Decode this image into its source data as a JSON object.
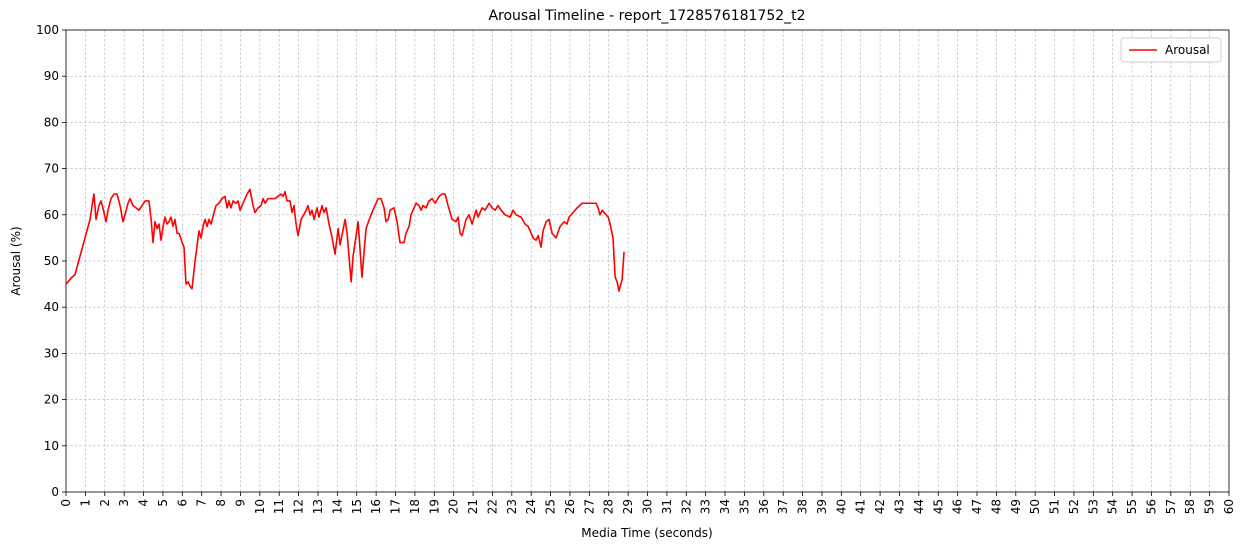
{
  "chart_data": {
    "type": "line",
    "title": "Arousal Timeline - report_1728576181752_t2",
    "xlabel": "Media Time (seconds)",
    "ylabel": "Arousal (%)",
    "x": [
      0,
      0.31,
      0.46,
      0.72,
      0.98,
      1.24,
      1.44,
      1.55,
      1.7,
      1.81,
      1.96,
      2.06,
      2.17,
      2.32,
      2.48,
      2.63,
      2.79,
      2.94,
      3.04,
      3.2,
      3.3,
      3.46,
      3.61,
      3.77,
      3.92,
      4.08,
      4.28,
      4.39,
      4.49,
      4.59,
      4.7,
      4.8,
      4.9,
      5.01,
      5.11,
      5.21,
      5.31,
      5.42,
      5.52,
      5.62,
      5.73,
      5.83,
      5.99,
      6.09,
      6.19,
      6.3,
      6.4,
      6.5,
      6.66,
      6.86,
      6.97,
      7.07,
      7.17,
      7.28,
      7.38,
      7.48,
      7.64,
      7.74,
      7.89,
      8.05,
      8.2,
      8.31,
      8.41,
      8.51,
      8.62,
      8.77,
      8.88,
      8.98,
      9.13,
      9.34,
      9.49,
      9.65,
      9.75,
      9.91,
      10.06,
      10.17,
      10.27,
      10.42,
      10.78,
      10.94,
      11.09,
      11.2,
      11.3,
      11.4,
      11.56,
      11.66,
      11.76,
      11.87,
      11.97,
      12.13,
      12.33,
      12.49,
      12.59,
      12.69,
      12.8,
      12.95,
      13.05,
      13.21,
      13.31,
      13.42,
      13.57,
      13.73,
      13.88,
      14.04,
      14.14,
      14.4,
      14.5,
      14.6,
      14.71,
      14.81,
      15.07,
      15.27,
      15.48,
      15.69,
      15.94,
      16.1,
      16.25,
      16.41,
      16.51,
      16.62,
      16.72,
      16.92,
      17.08,
      17.23,
      17.44,
      17.54,
      17.7,
      17.8,
      17.96,
      18.06,
      18.21,
      18.32,
      18.42,
      18.58,
      18.73,
      18.89,
      19.04,
      19.25,
      19.4,
      19.56,
      19.71,
      19.92,
      20.12,
      20.23,
      20.33,
      20.43,
      20.64,
      20.79,
      20.95,
      21.16,
      21.26,
      21.47,
      21.62,
      21.83,
      21.98,
      22.14,
      22.29,
      22.45,
      22.65,
      22.91,
      23.07,
      23.22,
      23.48,
      23.68,
      23.84,
      24.1,
      24.25,
      24.36,
      24.51,
      24.61,
      24.77,
      24.92,
      25.08,
      25.28,
      25.49,
      25.7,
      25.85,
      25.95,
      26.16,
      26.37,
      26.63,
      27.35,
      27.45,
      27.55,
      27.66,
      27.86,
      27.97,
      28.07,
      28.22,
      28.33,
      28.43,
      28.53,
      28.69,
      28.79
    ],
    "series": [
      {
        "name": "Arousal",
        "color": "#ff0000",
        "values": [
          45,
          46.5,
          47,
          51,
          55,
          59,
          64.5,
          59,
          62,
          63,
          60.5,
          58.5,
          61,
          63.5,
          64.5,
          64.5,
          62,
          58.5,
          60,
          62.5,
          63.5,
          62,
          61.5,
          61,
          62,
          63,
          63,
          59,
          54,
          58.5,
          57,
          58,
          54.5,
          57.5,
          59.5,
          58,
          58.5,
          59.5,
          57.5,
          59,
          56,
          56,
          54,
          53,
          45,
          45.5,
          44.5,
          44,
          50,
          56.5,
          55,
          57.5,
          59,
          57.5,
          59,
          58,
          60.5,
          62,
          62.5,
          63.5,
          64,
          61.5,
          63,
          61.5,
          63,
          62.5,
          63,
          61,
          62.5,
          64.5,
          65.5,
          62,
          60.5,
          61.5,
          62,
          63.5,
          62.5,
          63.5,
          63.5,
          64,
          64.5,
          64,
          65,
          63,
          63,
          60.5,
          62,
          58,
          55.5,
          59,
          60.5,
          62,
          60,
          61,
          59,
          61.5,
          59.5,
          62,
          60.5,
          61.5,
          58,
          55,
          51.5,
          57,
          53.5,
          59,
          56,
          51,
          45.5,
          51,
          58.5,
          46.5,
          57,
          59.5,
          62,
          63.5,
          63.5,
          61.5,
          58.5,
          59,
          61,
          61.5,
          58.5,
          54,
          54,
          56,
          57.5,
          60,
          61.5,
          62.5,
          62,
          61,
          62,
          61.5,
          63,
          63.5,
          62.5,
          64,
          64.5,
          64.5,
          62,
          59,
          58.5,
          59.5,
          56,
          55.5,
          59,
          60,
          58,
          61,
          59.5,
          61.5,
          61,
          62.5,
          61.5,
          61,
          62,
          61,
          60,
          59.5,
          61,
          60,
          59.5,
          58,
          57.5,
          55,
          54.5,
          55.5,
          53,
          56.5,
          58.5,
          59,
          56,
          55,
          57.5,
          58.5,
          58,
          59.5,
          60.5,
          61.5,
          62.5,
          62.5,
          61.5,
          60,
          61,
          60,
          59.5,
          58,
          55,
          46.5,
          45.5,
          43.5,
          46,
          52
        ]
      }
    ],
    "xlim": [
      0,
      60
    ],
    "ylim": [
      0,
      100
    ],
    "xticks": [
      0,
      1,
      2,
      3,
      4,
      5,
      6,
      7,
      8,
      9,
      10,
      11,
      12,
      13,
      14,
      15,
      16,
      17,
      18,
      19,
      20,
      21,
      22,
      23,
      24,
      25,
      26,
      27,
      28,
      29,
      30,
      31,
      32,
      33,
      34,
      35,
      36,
      37,
      38,
      39,
      40,
      41,
      42,
      43,
      44,
      45,
      46,
      47,
      48,
      49,
      50,
      51,
      52,
      53,
      54,
      55,
      56,
      57,
      58,
      59,
      60
    ],
    "yticks": [
      0,
      10,
      20,
      30,
      40,
      50,
      60,
      70,
      80,
      90,
      100
    ],
    "grid": true,
    "legend": "upper right"
  }
}
